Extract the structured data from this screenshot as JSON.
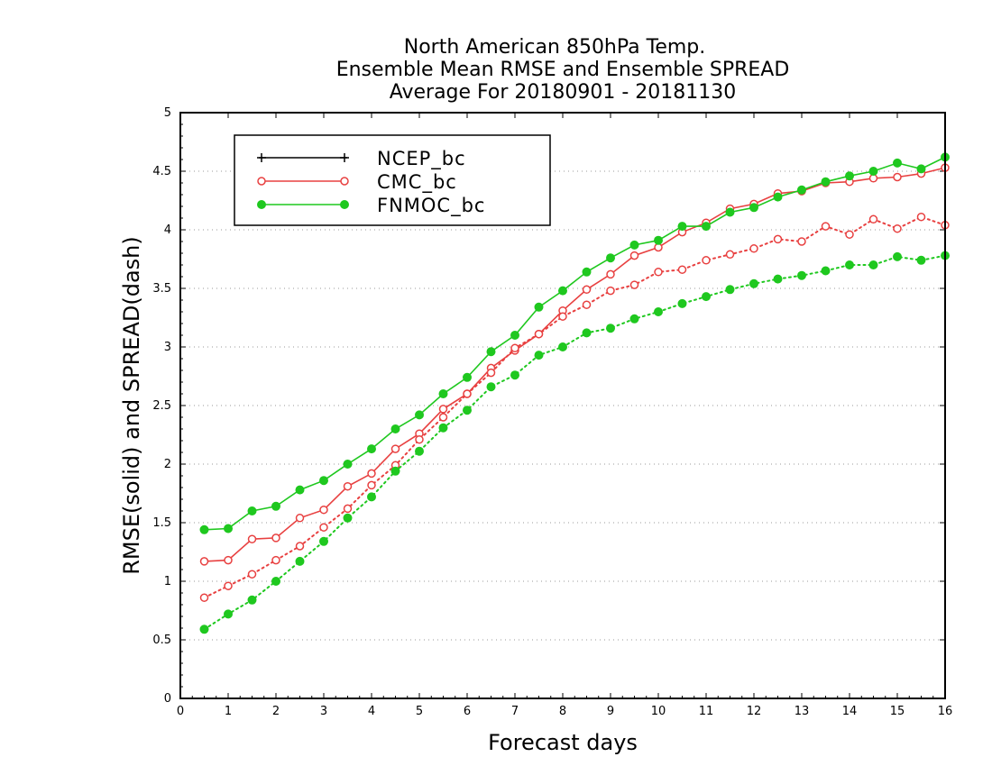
{
  "chart_data": {
    "type": "line",
    "title_lines": [
      "North American 850hPa Temp.",
      "Ensemble Mean RMSE and Ensemble SPREAD",
      "Average For 20180901 - 20181130"
    ],
    "xlabel": "Forecast days",
    "ylabel": "RMSE(solid) and SPREAD(dash)",
    "xlim": [
      0,
      16
    ],
    "ylim": [
      0,
      5
    ],
    "x_ticks": [
      "0",
      "1",
      "2",
      "3",
      "4",
      "5",
      "6",
      "7",
      "8",
      "9",
      "10",
      "11",
      "12",
      "13",
      "14",
      "15",
      "16"
    ],
    "y_ticks": [
      "0",
      "0.5",
      "1",
      "1.5",
      "2",
      "2.5",
      "3",
      "3.5",
      "4",
      "4.5",
      "5"
    ],
    "grid": "horizontal-dotted",
    "legend_position": "top-left",
    "legend": [
      {
        "label": "NCEP_bc",
        "color": "#000000",
        "marker": "plus"
      },
      {
        "label": "CMC_bc",
        "color": "#e84040",
        "marker": "open-circle"
      },
      {
        "label": "FNMOC_bc",
        "color": "#1fc81f",
        "marker": "filled-circle"
      }
    ],
    "x": [
      0.5,
      1,
      1.5,
      2,
      2.5,
      3,
      3.5,
      4,
      4.5,
      5,
      5.5,
      6,
      6.5,
      7,
      7.5,
      8,
      8.5,
      9,
      9.5,
      10,
      10.5,
      11,
      11.5,
      12,
      12.5,
      13,
      13.5,
      14,
      14.5,
      15,
      15.5,
      16
    ],
    "series": [
      {
        "name": "CMC_bc",
        "kind": "rmse",
        "style": "solid",
        "color": "#e84040",
        "marker": "open-circle",
        "values": [
          1.17,
          1.18,
          1.36,
          1.37,
          1.54,
          1.61,
          1.81,
          1.92,
          2.13,
          2.26,
          2.47,
          2.6,
          2.82,
          2.97,
          3.11,
          3.31,
          3.49,
          3.62,
          3.78,
          3.85,
          3.98,
          4.06,
          4.18,
          4.22,
          4.31,
          4.33,
          4.4,
          4.41,
          4.44,
          4.45,
          4.48,
          4.53
        ]
      },
      {
        "name": "CMC_bc",
        "kind": "spread",
        "style": "dotted",
        "color": "#e84040",
        "marker": "open-circle",
        "values": [
          0.86,
          0.96,
          1.06,
          1.18,
          1.3,
          1.46,
          1.62,
          1.82,
          1.99,
          2.21,
          2.4,
          2.6,
          2.78,
          2.99,
          3.11,
          3.26,
          3.36,
          3.48,
          3.53,
          3.64,
          3.66,
          3.74,
          3.79,
          3.84,
          3.92,
          3.9,
          4.03,
          3.96,
          4.09,
          4.01,
          4.11,
          4.04
        ]
      },
      {
        "name": "FNMOC_bc",
        "kind": "rmse",
        "style": "solid",
        "color": "#1fc81f",
        "marker": "filled-circle",
        "values": [
          1.44,
          1.45,
          1.6,
          1.64,
          1.78,
          1.86,
          2.0,
          2.13,
          2.3,
          2.42,
          2.6,
          2.74,
          2.96,
          3.1,
          3.34,
          3.48,
          3.64,
          3.76,
          3.87,
          3.91,
          4.03,
          4.03,
          4.15,
          4.19,
          4.28,
          4.34,
          4.41,
          4.46,
          4.5,
          4.57,
          4.52,
          4.62
        ]
      },
      {
        "name": "FNMOC_bc",
        "kind": "spread",
        "style": "dotted",
        "color": "#1fc81f",
        "marker": "filled-circle",
        "values": [
          0.59,
          0.72,
          0.84,
          1.0,
          1.17,
          1.34,
          1.54,
          1.72,
          1.94,
          2.11,
          2.31,
          2.46,
          2.66,
          2.76,
          2.93,
          3.0,
          3.12,
          3.16,
          3.24,
          3.3,
          3.37,
          3.43,
          3.49,
          3.54,
          3.58,
          3.61,
          3.65,
          3.7,
          3.7,
          3.77,
          3.74,
          3.78
        ]
      }
    ]
  }
}
